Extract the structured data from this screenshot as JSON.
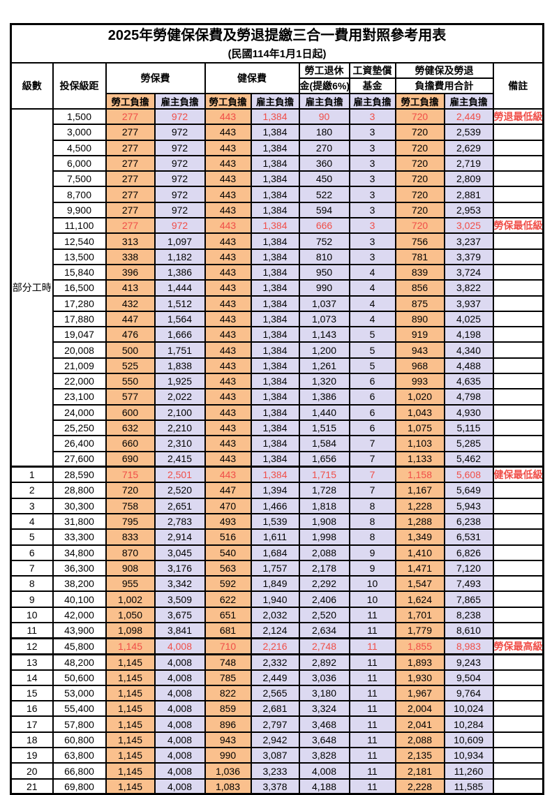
{
  "title": "2025年勞健保保費及勞退提繳三合一費用對照參考用表",
  "subtitle": "(民國114年1月1日起)",
  "colors": {
    "employee_bg": "#FAC08D",
    "employer_bg": "#DCD9F1",
    "highlight_red": "#F04E48",
    "border": "#000000",
    "background": "#FFFFFF"
  },
  "header": {
    "level": "級數",
    "salary": "投保級距",
    "labor": "勞保費",
    "health": "健保費",
    "pension_line1": "勞工退休",
    "pension_line2": "金(提繳6%)",
    "wage_fund_line1": "工資墊償",
    "wage_fund_line2": "基金",
    "total_line1": "勞健保及勞退",
    "total_line2": "負擔費用合計",
    "note": "備註",
    "employee": "勞工負擔",
    "employer": "雇主負擔"
  },
  "part_time_label": "部分工時",
  "rows": [
    {
      "level": "",
      "salary": "1,500",
      "values": [
        "277",
        "972",
        "443",
        "1,384",
        "90",
        "3",
        "720",
        "2,449"
      ],
      "note": "勞退最低級距",
      "red": true,
      "salary_large": false,
      "thick_top": false,
      "thick_bottom": false
    },
    {
      "level": "",
      "salary": "3,000",
      "values": [
        "277",
        "972",
        "443",
        "1,384",
        "180",
        "3",
        "720",
        "2,539"
      ],
      "note": "",
      "red": false,
      "salary_large": false,
      "thick_top": false,
      "thick_bottom": false
    },
    {
      "level": "",
      "salary": "4,500",
      "values": [
        "277",
        "972",
        "443",
        "1,384",
        "270",
        "3",
        "720",
        "2,629"
      ],
      "note": "",
      "red": false,
      "salary_large": false,
      "thick_top": false,
      "thick_bottom": false
    },
    {
      "level": "",
      "salary": "6,000",
      "values": [
        "277",
        "972",
        "443",
        "1,384",
        "360",
        "3",
        "720",
        "2,719"
      ],
      "note": "",
      "red": false,
      "salary_large": false,
      "thick_top": false,
      "thick_bottom": false
    },
    {
      "level": "",
      "salary": "7,500",
      "values": [
        "277",
        "972",
        "443",
        "1,384",
        "450",
        "3",
        "720",
        "2,809"
      ],
      "note": "",
      "red": false,
      "salary_large": false,
      "thick_top": false,
      "thick_bottom": false
    },
    {
      "level": "",
      "salary": "8,700",
      "values": [
        "277",
        "972",
        "443",
        "1,384",
        "522",
        "3",
        "720",
        "2,881"
      ],
      "note": "",
      "red": false,
      "salary_large": false,
      "thick_top": false,
      "thick_bottom": false
    },
    {
      "level": "",
      "salary": "9,900",
      "values": [
        "277",
        "972",
        "443",
        "1,384",
        "594",
        "3",
        "720",
        "2,953"
      ],
      "note": "",
      "red": false,
      "salary_large": false,
      "thick_top": false,
      "thick_bottom": false
    },
    {
      "level": "",
      "salary": "11,100",
      "values": [
        "277",
        "972",
        "443",
        "1,384",
        "666",
        "3",
        "720",
        "3,025"
      ],
      "note": "勞保最低級距",
      "red": true,
      "salary_large": false,
      "thick_top": false,
      "thick_bottom": false
    },
    {
      "level": "",
      "salary": "12,540",
      "values": [
        "313",
        "1,097",
        "443",
        "1,384",
        "752",
        "3",
        "756",
        "3,237"
      ],
      "note": "",
      "red": false,
      "salary_large": false,
      "thick_top": false,
      "thick_bottom": false
    },
    {
      "level": "",
      "salary": "13,500",
      "values": [
        "338",
        "1,182",
        "443",
        "1,384",
        "810",
        "3",
        "781",
        "3,379"
      ],
      "note": "",
      "red": false,
      "salary_large": false,
      "thick_top": false,
      "thick_bottom": false
    },
    {
      "level": "",
      "salary": "15,840",
      "values": [
        "396",
        "1,386",
        "443",
        "1,384",
        "950",
        "4",
        "839",
        "3,724"
      ],
      "note": "",
      "red": false,
      "salary_large": false,
      "thick_top": false,
      "thick_bottom": false
    },
    {
      "level": "",
      "salary": "16,500",
      "values": [
        "413",
        "1,444",
        "443",
        "1,384",
        "990",
        "4",
        "856",
        "3,822"
      ],
      "note": "",
      "red": false,
      "salary_large": false,
      "thick_top": false,
      "thick_bottom": false
    },
    {
      "level": "",
      "salary": "17,280",
      "values": [
        "432",
        "1,512",
        "443",
        "1,384",
        "1,037",
        "4",
        "875",
        "3,937"
      ],
      "note": "",
      "red": false,
      "salary_large": false,
      "thick_top": false,
      "thick_bottom": false
    },
    {
      "level": "",
      "salary": "17,880",
      "values": [
        "447",
        "1,564",
        "443",
        "1,384",
        "1,073",
        "4",
        "890",
        "4,025"
      ],
      "note": "",
      "red": false,
      "salary_large": false,
      "thick_top": false,
      "thick_bottom": false
    },
    {
      "level": "",
      "salary": "19,047",
      "values": [
        "476",
        "1,666",
        "443",
        "1,384",
        "1,143",
        "5",
        "919",
        "4,198"
      ],
      "note": "",
      "red": false,
      "salary_large": false,
      "thick_top": false,
      "thick_bottom": false
    },
    {
      "level": "",
      "salary": "20,008",
      "values": [
        "500",
        "1,751",
        "443",
        "1,384",
        "1,200",
        "5",
        "943",
        "4,340"
      ],
      "note": "",
      "red": false,
      "salary_large": false,
      "thick_top": false,
      "thick_bottom": false
    },
    {
      "level": "",
      "salary": "21,009",
      "values": [
        "525",
        "1,838",
        "443",
        "1,384",
        "1,261",
        "5",
        "968",
        "4,488"
      ],
      "note": "",
      "red": false,
      "salary_large": false,
      "thick_top": false,
      "thick_bottom": false
    },
    {
      "level": "",
      "salary": "22,000",
      "values": [
        "550",
        "1,925",
        "443",
        "1,384",
        "1,320",
        "6",
        "993",
        "4,635"
      ],
      "note": "",
      "red": false,
      "salary_large": false,
      "thick_top": false,
      "thick_bottom": false
    },
    {
      "level": "",
      "salary": "23,100",
      "values": [
        "577",
        "2,022",
        "443",
        "1,384",
        "1,386",
        "6",
        "1,020",
        "4,798"
      ],
      "note": "",
      "red": false,
      "salary_large": false,
      "thick_top": false,
      "thick_bottom": false
    },
    {
      "level": "",
      "salary": "24,000",
      "values": [
        "600",
        "2,100",
        "443",
        "1,384",
        "1,440",
        "6",
        "1,043",
        "4,930"
      ],
      "note": "",
      "red": false,
      "salary_large": false,
      "thick_top": false,
      "thick_bottom": false
    },
    {
      "level": "",
      "salary": "25,250",
      "values": [
        "632",
        "2,210",
        "443",
        "1,384",
        "1,515",
        "6",
        "1,075",
        "5,115"
      ],
      "note": "",
      "red": false,
      "salary_large": false,
      "thick_top": false,
      "thick_bottom": false
    },
    {
      "level": "",
      "salary": "26,400",
      "values": [
        "660",
        "2,310",
        "443",
        "1,384",
        "1,584",
        "7",
        "1,103",
        "5,285"
      ],
      "note": "",
      "red": false,
      "salary_large": false,
      "thick_top": false,
      "thick_bottom": false
    },
    {
      "level": "",
      "salary": "27,600",
      "values": [
        "690",
        "2,415",
        "443",
        "1,384",
        "1,656",
        "7",
        "1,133",
        "5,462"
      ],
      "note": "",
      "red": false,
      "salary_large": false,
      "thick_top": false,
      "thick_bottom": false
    },
    {
      "level": "1",
      "salary": "28,590",
      "values": [
        "715",
        "2,501",
        "443",
        "1,384",
        "1,715",
        "7",
        "1,158",
        "5,608"
      ],
      "note": "健保最低級距",
      "red": true,
      "salary_large": true,
      "thick_top": true,
      "thick_bottom": false
    },
    {
      "level": "2",
      "salary": "28,800",
      "values": [
        "720",
        "2,520",
        "447",
        "1,394",
        "1,728",
        "7",
        "1,167",
        "5,649"
      ],
      "note": "",
      "red": false,
      "salary_large": false,
      "thick_top": false,
      "thick_bottom": false
    },
    {
      "level": "3",
      "salary": "30,300",
      "values": [
        "758",
        "2,651",
        "470",
        "1,466",
        "1,818",
        "8",
        "1,228",
        "5,943"
      ],
      "note": "",
      "red": false,
      "salary_large": false,
      "thick_top": false,
      "thick_bottom": false
    },
    {
      "level": "4",
      "salary": "31,800",
      "values": [
        "795",
        "2,783",
        "493",
        "1,539",
        "1,908",
        "8",
        "1,288",
        "6,238"
      ],
      "note": "",
      "red": false,
      "salary_large": false,
      "thick_top": false,
      "thick_bottom": false
    },
    {
      "level": "5",
      "salary": "33,300",
      "values": [
        "833",
        "2,914",
        "516",
        "1,611",
        "1,998",
        "8",
        "1,349",
        "6,531"
      ],
      "note": "",
      "red": false,
      "salary_large": false,
      "thick_top": false,
      "thick_bottom": false
    },
    {
      "level": "6",
      "salary": "34,800",
      "values": [
        "870",
        "3,045",
        "540",
        "1,684",
        "2,088",
        "9",
        "1,410",
        "6,826"
      ],
      "note": "",
      "red": false,
      "salary_large": false,
      "thick_top": false,
      "thick_bottom": false
    },
    {
      "level": "7",
      "salary": "36,300",
      "values": [
        "908",
        "3,176",
        "563",
        "1,757",
        "2,178",
        "9",
        "1,471",
        "7,120"
      ],
      "note": "",
      "red": false,
      "salary_large": false,
      "thick_top": false,
      "thick_bottom": false
    },
    {
      "level": "8",
      "salary": "38,200",
      "values": [
        "955",
        "3,342",
        "592",
        "1,849",
        "2,292",
        "10",
        "1,547",
        "7,493"
      ],
      "note": "",
      "red": false,
      "salary_large": false,
      "thick_top": false,
      "thick_bottom": false
    },
    {
      "level": "9",
      "salary": "40,100",
      "values": [
        "1,002",
        "3,509",
        "622",
        "1,940",
        "2,406",
        "10",
        "1,624",
        "7,865"
      ],
      "note": "",
      "red": false,
      "salary_large": false,
      "thick_top": false,
      "thick_bottom": false
    },
    {
      "level": "10",
      "salary": "42,000",
      "values": [
        "1,050",
        "3,675",
        "651",
        "2,032",
        "2,520",
        "11",
        "1,701",
        "8,238"
      ],
      "note": "",
      "red": false,
      "salary_large": false,
      "thick_top": false,
      "thick_bottom": false
    },
    {
      "level": "11",
      "salary": "43,900",
      "values": [
        "1,098",
        "3,841",
        "681",
        "2,124",
        "2,634",
        "11",
        "1,779",
        "8,610"
      ],
      "note": "",
      "red": false,
      "salary_large": false,
      "thick_top": false,
      "thick_bottom": false
    },
    {
      "level": "12",
      "salary": "45,800",
      "values": [
        "1,145",
        "4,008",
        "710",
        "2,216",
        "2,748",
        "11",
        "1,855",
        "8,983"
      ],
      "note": "勞保最高級距",
      "red": true,
      "salary_large": true,
      "thick_top": true,
      "thick_bottom": true
    },
    {
      "level": "13",
      "salary": "48,200",
      "values": [
        "1,145",
        "4,008",
        "748",
        "2,332",
        "2,892",
        "11",
        "1,893",
        "9,243"
      ],
      "note": "",
      "red": false,
      "salary_large": false,
      "thick_top": false,
      "thick_bottom": false
    },
    {
      "level": "14",
      "salary": "50,600",
      "values": [
        "1,145",
        "4,008",
        "785",
        "2,449",
        "3,036",
        "11",
        "1,930",
        "9,504"
      ],
      "note": "",
      "red": false,
      "salary_large": false,
      "thick_top": false,
      "thick_bottom": false
    },
    {
      "level": "15",
      "salary": "53,000",
      "values": [
        "1,145",
        "4,008",
        "822",
        "2,565",
        "3,180",
        "11",
        "1,967",
        "9,764"
      ],
      "note": "",
      "red": false,
      "salary_large": false,
      "thick_top": false,
      "thick_bottom": false
    },
    {
      "level": "16",
      "salary": "55,400",
      "values": [
        "1,145",
        "4,008",
        "859",
        "2,681",
        "3,324",
        "11",
        "2,004",
        "10,024"
      ],
      "note": "",
      "red": false,
      "salary_large": false,
      "thick_top": false,
      "thick_bottom": false
    },
    {
      "level": "17",
      "salary": "57,800",
      "values": [
        "1,145",
        "4,008",
        "896",
        "2,797",
        "3,468",
        "11",
        "2,041",
        "10,284"
      ],
      "note": "",
      "red": false,
      "salary_large": false,
      "thick_top": false,
      "thick_bottom": false
    },
    {
      "level": "18",
      "salary": "60,800",
      "values": [
        "1,145",
        "4,008",
        "943",
        "2,942",
        "3,648",
        "11",
        "2,088",
        "10,609"
      ],
      "note": "",
      "red": false,
      "salary_large": false,
      "thick_top": false,
      "thick_bottom": false
    },
    {
      "level": "19",
      "salary": "63,800",
      "values": [
        "1,145",
        "4,008",
        "990",
        "3,087",
        "3,828",
        "11",
        "2,135",
        "10,934"
      ],
      "note": "",
      "red": false,
      "salary_large": false,
      "thick_top": false,
      "thick_bottom": false
    },
    {
      "level": "20",
      "salary": "66,800",
      "values": [
        "1,145",
        "4,008",
        "1,036",
        "3,233",
        "4,008",
        "11",
        "2,181",
        "11,260"
      ],
      "note": "",
      "red": false,
      "salary_large": false,
      "thick_top": false,
      "thick_bottom": false
    },
    {
      "level": "21",
      "salary": "69,800",
      "values": [
        "1,145",
        "4,008",
        "1,083",
        "3,378",
        "4,188",
        "11",
        "2,228",
        "11,585"
      ],
      "note": "",
      "red": false,
      "salary_large": false,
      "thick_top": false,
      "thick_bottom": false
    }
  ]
}
